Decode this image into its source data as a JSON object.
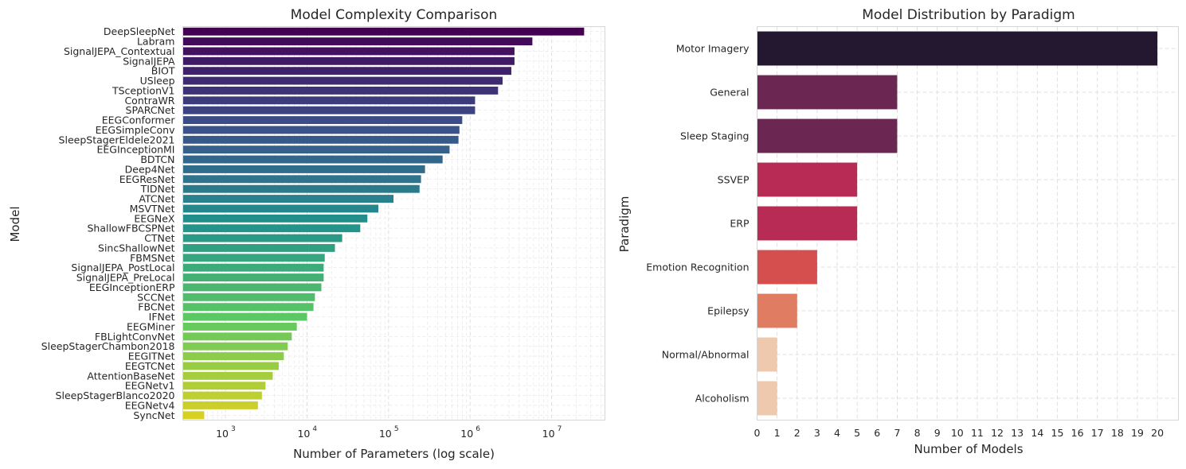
{
  "chart_data": [
    {
      "type": "bar",
      "orientation": "horizontal",
      "title": "Model Complexity Comparison",
      "xlabel": "Number of Parameters (log scale)",
      "ylabel": "Model",
      "xscale": "log",
      "xlim": [
        300,
        45000000
      ],
      "xticks": [
        1000,
        10000,
        100000,
        1000000,
        10000000
      ],
      "xtick_exponents": [
        "3",
        "4",
        "5",
        "6",
        "7"
      ],
      "grid": true,
      "palette": "viridis",
      "categories": [
        "DeepSleepNet",
        "Labram",
        "SignalJEPA_Contextual",
        "SignalJEPA",
        "BIOT",
        "USleep",
        "TSceptionV1",
        "ContraWR",
        "SPARCNet",
        "EEGConformer",
        "EEGSimpleConv",
        "SleepStagerEldele2021",
        "EEGInceptionMI",
        "BDTCN",
        "Deep4Net",
        "EEGResNet",
        "TIDNet",
        "ATCNet",
        "MSVTNet",
        "EEGNeX",
        "ShallowFBCSPNet",
        "CTNet",
        "SincShallowNet",
        "FBMSNet",
        "SignalJEPA_PostLocal",
        "SignalJEPA_PreLocal",
        "EEGInceptionERP",
        "SCCNet",
        "FBCNet",
        "IFNet",
        "EEGMiner",
        "FBLightConvNet",
        "SleepStagerChambon2018",
        "EEGITNet",
        "EEGTCNet",
        "AttentionBaseNet",
        "EEGNetv1",
        "SleepStagerBlanco2020",
        "EEGNetv4",
        "SyncNet"
      ],
      "values": [
        25000000,
        5800000,
        3500000,
        3500000,
        3200000,
        2500000,
        2200000,
        1150000,
        1150000,
        800000,
        740000,
        720000,
        560000,
        460000,
        280000,
        250000,
        240000,
        115000,
        75000,
        55000,
        45000,
        27000,
        22000,
        16500,
        16000,
        16000,
        15000,
        12500,
        12000,
        10000,
        7500,
        6500,
        5800,
        5200,
        4500,
        3800,
        3100,
        2800,
        2500,
        550
      ]
    },
    {
      "type": "bar",
      "orientation": "horizontal",
      "title": "Model Distribution by Paradigm",
      "xlabel": "Number of Models",
      "ylabel": "Paradigm",
      "xlim": [
        0,
        21.05
      ],
      "xticks": [
        "0",
        "1",
        "2",
        "3",
        "4",
        "5",
        "6",
        "7",
        "8",
        "9",
        "10",
        "11",
        "12",
        "13",
        "14",
        "15",
        "16",
        "17",
        "18",
        "19",
        "20"
      ],
      "grid": true,
      "palette": "rocket",
      "categories": [
        "Motor Imagery",
        "General",
        "Sleep Staging",
        "SSVEP",
        "ERP",
        "Emotion Recognition",
        "Epilepsy",
        "Normal/Abnormal",
        "Alcoholism"
      ],
      "values": [
        20,
        7,
        7,
        5,
        5,
        3,
        2,
        1,
        1
      ],
      "colors": [
        "#241830",
        "#6b2752",
        "#6b2752",
        "#b82b55",
        "#b82b55",
        "#d44f4e",
        "#e07c62",
        "#efc9ae",
        "#efc9ae"
      ]
    }
  ]
}
